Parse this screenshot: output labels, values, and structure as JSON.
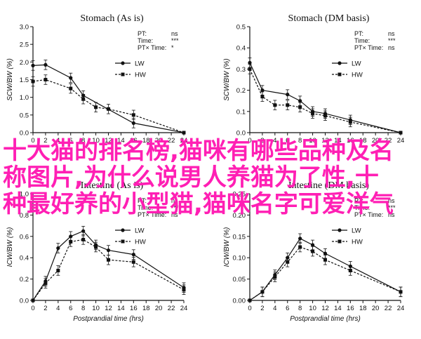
{
  "colors": {
    "ink": "#111111",
    "overlay": "#ff1fb4"
  },
  "overlay": {
    "lines": [
      "十大猫的排名榜,猫咪有哪些品种及名",
      "称图片,为什么说男人养猫为了性,十",
      "种最好养的小型猫,猫咪名字可爱洋气"
    ]
  },
  "chart_data": [
    {
      "type": "line",
      "title": "Stomach (As is)",
      "ylabel": "SCW/BW (%)",
      "xlabel": "",
      "xticks": [
        0,
        2,
        4,
        6,
        8,
        10,
        12,
        14,
        16,
        18,
        20,
        22,
        24
      ],
      "xlim": [
        0,
        24
      ],
      "yticks": [
        0.0,
        0.5,
        1.0,
        1.5,
        2.0,
        2.5,
        3.0
      ],
      "ytick_labels": [
        "0.0",
        "0.5",
        "1.0",
        "1.5",
        "2.0",
        "2.5",
        "3.0"
      ],
      "ylim": [
        0,
        3.0
      ],
      "stats": [
        {
          "label": "PT:",
          "value": "ns"
        },
        {
          "label": "Time:",
          "value": "***"
        },
        {
          "label": "PT× Time:",
          "value": "*"
        }
      ],
      "series": [
        {
          "name": "LW",
          "style": "solid",
          "marker": "filled",
          "x": [
            0,
            2,
            6,
            8,
            16,
            24
          ],
          "y": [
            1.9,
            1.92,
            1.55,
            1.05,
            0.27,
            0.0
          ]
        },
        {
          "name": "HW",
          "style": "dashed",
          "marker": "filled",
          "x": [
            0,
            2,
            6,
            8,
            10,
            12,
            16,
            24
          ],
          "y": [
            1.45,
            1.5,
            1.25,
            0.95,
            0.72,
            0.67,
            0.5,
            0.0
          ]
        }
      ]
    },
    {
      "type": "line",
      "title": "Stomach (DM basis)",
      "ylabel": "SCW/BW (%)",
      "xlabel": "",
      "xticks": [
        0,
        2,
        4,
        6,
        8,
        10,
        12,
        14,
        16,
        18,
        20,
        22,
        24
      ],
      "xlim": [
        0,
        24
      ],
      "yticks": [
        0.0,
        0.1,
        0.2,
        0.3,
        0.4,
        0.5
      ],
      "ytick_labels": [
        "0.0",
        "0.1",
        "0.2",
        "0.3",
        "0.4",
        "0.5"
      ],
      "ylim": [
        0,
        0.5
      ],
      "stats": [
        {
          "label": "PT:",
          "value": "ns"
        },
        {
          "label": "Time:",
          "value": "***"
        },
        {
          "label": "PT× Time:",
          "value": "ns"
        }
      ],
      "series": [
        {
          "name": "LW",
          "style": "solid",
          "marker": "filled",
          "x": [
            0,
            2,
            6,
            8,
            10,
            12,
            16,
            24
          ],
          "y": [
            0.33,
            0.2,
            0.18,
            0.15,
            0.1,
            0.09,
            0.06,
            0.0
          ]
        },
        {
          "name": "HW",
          "style": "dashed",
          "marker": "filled",
          "x": [
            0,
            2,
            4,
            6,
            8,
            10,
            12,
            16,
            24
          ],
          "y": [
            0.3,
            0.17,
            0.13,
            0.13,
            0.12,
            0.09,
            0.08,
            0.05,
            0.0
          ]
        }
      ]
    },
    {
      "type": "line",
      "title": "Intestine (As is)",
      "ylabel": "ICW/BW (%)",
      "xlabel": "Postprandial time (hrs)",
      "xticks": [
        0,
        2,
        4,
        6,
        8,
        10,
        12,
        14,
        16,
        18,
        20,
        22,
        24
      ],
      "xlim": [
        0,
        24
      ],
      "yticks": [
        0.0,
        0.2,
        0.4,
        0.6,
        0.8,
        1.0
      ],
      "ytick_labels": [
        "0.0",
        "0.2",
        "0.4",
        "0.6",
        "0.8",
        "1.0"
      ],
      "ylim": [
        0,
        1.0
      ],
      "stats": [
        {
          "label": "PT:",
          "value": "ns"
        },
        {
          "label": "Time:",
          "value": "***"
        },
        {
          "label": "PT× Time:",
          "value": "ns"
        }
      ],
      "series": [
        {
          "name": "LW",
          "style": "solid",
          "marker": "filled",
          "x": [
            0,
            2,
            4,
            6,
            8,
            10,
            12,
            16,
            24
          ],
          "y": [
            0.0,
            0.18,
            0.49,
            0.6,
            0.65,
            0.52,
            0.47,
            0.43,
            0.12
          ]
        },
        {
          "name": "HW",
          "style": "dashed",
          "marker": "filled",
          "x": [
            0,
            2,
            4,
            6,
            8,
            10,
            12,
            16,
            24
          ],
          "y": [
            0.0,
            0.16,
            0.28,
            0.55,
            0.57,
            0.5,
            0.38,
            0.36,
            0.1
          ]
        }
      ]
    },
    {
      "type": "line",
      "title": "Intestine (DM basis)",
      "ylabel": "ICW/BW (%)",
      "xlabel": "Postprandial time (hrs)",
      "xticks": [
        0,
        2,
        4,
        6,
        8,
        10,
        12,
        14,
        16,
        18,
        20,
        22,
        24
      ],
      "xlim": [
        0,
        24
      ],
      "yticks": [
        0.0,
        0.05,
        0.1,
        0.15,
        0.2,
        0.25
      ],
      "ytick_labels": [
        "0.00",
        "0.05",
        "0.10",
        "0.15",
        "0.20",
        "0.25"
      ],
      "ylim": [
        0,
        0.25
      ],
      "stats": [
        {
          "label": "PT:",
          "value": "ns"
        },
        {
          "label": "Time:",
          "value": "***"
        },
        {
          "label": "PT× Time:",
          "value": "ns"
        }
      ],
      "series": [
        {
          "name": "LW",
          "style": "solid",
          "marker": "filled",
          "x": [
            0,
            2,
            4,
            6,
            8,
            10,
            12,
            16,
            24
          ],
          "y": [
            0.0,
            0.02,
            0.06,
            0.1,
            0.145,
            0.13,
            0.11,
            0.08,
            0.02
          ]
        },
        {
          "name": "HW",
          "style": "dashed",
          "marker": "filled",
          "x": [
            0,
            2,
            4,
            6,
            8,
            10,
            12,
            16,
            24
          ],
          "y": [
            0.0,
            0.02,
            0.055,
            0.09,
            0.125,
            0.115,
            0.095,
            0.07,
            0.02
          ]
        }
      ]
    }
  ]
}
